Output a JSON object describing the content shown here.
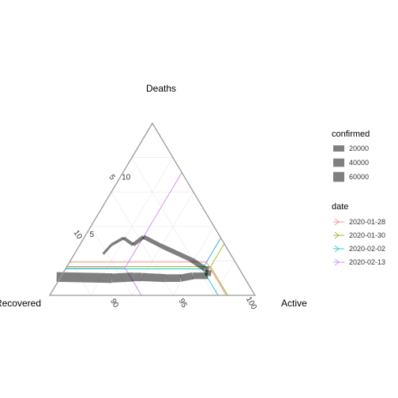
{
  "chart_data": {
    "type": "ternary",
    "title": "",
    "axes": {
      "top": "Deaths",
      "left": "Recovered",
      "right": "Active"
    },
    "limits": {
      "deaths": [
        0,
        15
      ],
      "recovered": [
        0,
        15
      ],
      "active": [
        85,
        100
      ]
    },
    "ticks": {
      "active": [
        90,
        95,
        100
      ],
      "deaths": [
        5,
        10
      ],
      "recovered": [
        5,
        10
      ]
    },
    "grid": true,
    "legend_position": "right",
    "legend": {
      "size_title": "confirmed",
      "size_entries": [
        {
          "label": "20000",
          "value": 20000
        },
        {
          "label": "40000",
          "value": 40000
        },
        {
          "label": "60000",
          "value": 60000
        }
      ],
      "date_title": "date",
      "date_entries": [
        {
          "label": "2020-01-28",
          "color": "#F8766D"
        },
        {
          "label": "2020-01-30",
          "color": "#7CAE00"
        },
        {
          "label": "2020-02-02",
          "color": "#00BFC4"
        },
        {
          "label": "2020-02-13",
          "color": "#C77CFF"
        }
      ]
    },
    "reference_points": [
      {
        "date": "2020-01-28",
        "deaths": 2.9,
        "recovered": 2.1,
        "active": 95.0
      },
      {
        "date": "2020-01-30",
        "deaths": 2.5,
        "recovered": 2.0,
        "active": 95.5
      },
      {
        "date": "2020-02-02",
        "deaths": 2.3,
        "recovered": 2.7,
        "active": 95.0
      },
      {
        "date": "2020-02-13",
        "deaths": 2.4,
        "recovered": 8.3,
        "active": 89.3
      }
    ],
    "path": [
      {
        "deaths": 3.6,
        "recovered": 9.3,
        "active": 87.1,
        "confirmed": 1000
      },
      {
        "deaths": 4.4,
        "recovered": 8.3,
        "active": 87.3,
        "confirmed": 1500
      },
      {
        "deaths": 5.0,
        "recovered": 7.1,
        "active": 87.9,
        "confirmed": 2500
      },
      {
        "deaths": 4.4,
        "recovered": 6.7,
        "active": 88.9,
        "confirmed": 4500
      },
      {
        "deaths": 5.1,
        "recovered": 5.6,
        "active": 89.3,
        "confirmed": 6000
      },
      {
        "deaths": 4.3,
        "recovered": 4.7,
        "active": 91.0,
        "confirmed": 8000
      },
      {
        "deaths": 3.1,
        "recovered": 3.1,
        "active": 93.8,
        "confirmed": 10000
      },
      {
        "deaths": 2.3,
        "recovered": 2.5,
        "active": 95.2,
        "confirmed": 14000
      },
      {
        "deaths": 2.2,
        "recovered": 2.3,
        "active": 95.5,
        "confirmed": 17000
      },
      {
        "deaths": 1.7,
        "recovered": 2.6,
        "active": 95.7,
        "confirmed": 20000
      },
      {
        "deaths": 1.7,
        "recovered": 3.7,
        "active": 94.6,
        "confirmed": 25000
      },
      {
        "deaths": 1.5,
        "recovered": 4.7,
        "active": 93.8,
        "confirmed": 30000
      },
      {
        "deaths": 1.5,
        "recovered": 5.8,
        "active": 92.7,
        "confirmed": 35000
      },
      {
        "deaths": 1.6,
        "recovered": 7.5,
        "active": 90.9,
        "confirmed": 40000
      },
      {
        "deaths": 1.6,
        "recovered": 8.1,
        "active": 90.3,
        "confirmed": 44000
      },
      {
        "deaths": 1.5,
        "recovered": 9.7,
        "active": 88.8,
        "confirmed": 55000
      },
      {
        "deaths": 1.6,
        "recovered": 13.7,
        "active": 84.7,
        "confirmed": 60000
      }
    ]
  }
}
